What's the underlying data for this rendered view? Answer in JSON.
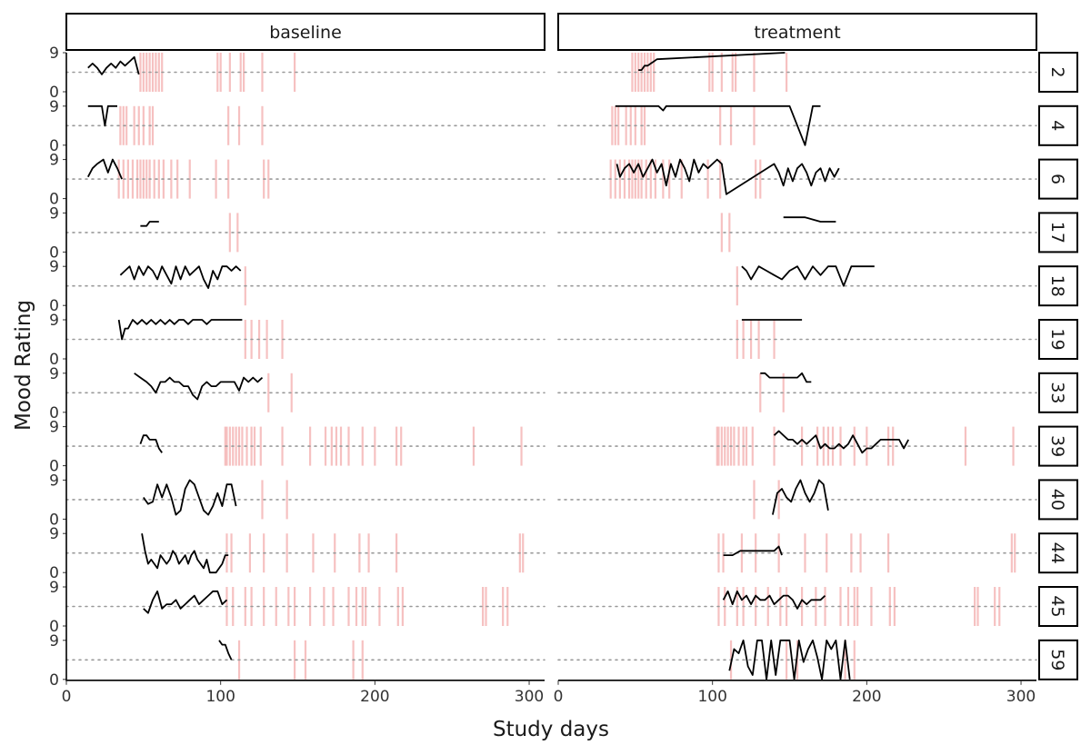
{
  "chart_data": {
    "type": "line",
    "xlabel": "Study days",
    "ylabel": "Mood Rating",
    "xlim": [
      0,
      310
    ],
    "ylim": [
      0,
      9
    ],
    "x_ticks": [
      0,
      100,
      200,
      300
    ],
    "y_ticks": [
      0,
      9
    ],
    "grid": false,
    "reference_line": {
      "y": 4.5,
      "style": "dotted"
    },
    "event_color": "#f4b6b6",
    "line_color": "#000000",
    "columns": [
      "baseline",
      "treatment"
    ],
    "panels": [
      {
        "id": "2",
        "baseline": {
          "x": [
            14,
            17,
            20,
            23,
            26,
            29,
            32,
            35,
            38,
            41,
            44,
            47
          ],
          "y": [
            5.5,
            6.5,
            5.5,
            4,
            5.5,
            6.5,
            5.5,
            7,
            6,
            7,
            8,
            4
          ]
        },
        "treatment": {
          "x": [
            52,
            54,
            56,
            58,
            60,
            62,
            64,
            147
          ],
          "y": [
            5,
            5,
            6,
            6,
            6.5,
            7,
            7.5,
            9
          ]
        },
        "events": [
          48,
          50,
          52,
          54,
          56,
          58,
          60,
          62,
          98,
          100,
          106,
          113,
          115,
          127,
          148
        ]
      },
      {
        "id": "4",
        "baseline": {
          "x": [
            14,
            17,
            20,
            23,
            25,
            27,
            29,
            31,
            33
          ],
          "y": [
            9,
            9,
            9,
            9,
            4.5,
            9,
            9,
            9,
            9
          ]
        },
        "treatment": {
          "x": [
            37,
            40,
            45,
            50,
            55,
            60,
            65,
            68,
            70,
            75,
            80,
            90,
            100,
            110,
            120,
            130,
            140,
            150,
            160,
            165,
            168,
            170
          ],
          "y": [
            9,
            9,
            9,
            9,
            9,
            9,
            9,
            8,
            9,
            9,
            9,
            9,
            9,
            9,
            9,
            9,
            9,
            9,
            0,
            9,
            9,
            9
          ]
        },
        "events": [
          35,
          37,
          39,
          44,
          47,
          50,
          54,
          56,
          105,
          112,
          127
        ]
      },
      {
        "id": "6",
        "baseline": {
          "x": [
            14,
            17,
            20,
            24,
            27,
            30,
            33,
            36
          ],
          "y": [
            5,
            7,
            8,
            9,
            6,
            9,
            7,
            4.5
          ]
        },
        "treatment": {
          "x": [
            38,
            40,
            43,
            46,
            49,
            52,
            55,
            58,
            61,
            64,
            67,
            70,
            73,
            76,
            79,
            82,
            85,
            88,
            91,
            94,
            97,
            100,
            103,
            106,
            109,
            140,
            143,
            146,
            149,
            152,
            155,
            158,
            161,
            164,
            167,
            170,
            173,
            176,
            179,
            182
          ],
          "y": [
            8,
            5,
            7,
            8,
            6,
            8,
            5,
            7,
            9,
            6,
            8,
            3,
            8,
            5,
            9,
            7,
            4,
            9,
            6,
            8,
            7,
            8,
            9,
            8,
            1,
            8,
            6,
            3,
            7,
            4,
            7,
            8,
            6,
            3,
            6,
            7,
            4,
            7,
            5,
            7
          ]
        },
        "events": [
          34,
          37,
          40,
          43,
          46,
          48,
          50,
          52,
          54,
          57,
          60,
          63,
          68,
          72,
          80,
          97,
          105,
          128,
          131
        ]
      },
      {
        "id": "17",
        "baseline": {
          "x": [
            48,
            50,
            52,
            54,
            56,
            58,
            60
          ],
          "y": [
            6,
            6,
            6,
            7,
            7,
            7,
            7
          ]
        },
        "treatment": {
          "x": [
            146,
            150,
            155,
            160,
            165,
            170,
            175,
            180
          ],
          "y": [
            8,
            8,
            8,
            8,
            7.5,
            7,
            7,
            7
          ]
        },
        "events": [
          106,
          111
        ]
      },
      {
        "id": "18",
        "baseline": {
          "x": [
            35,
            38,
            41,
            44,
            47,
            50,
            53,
            56,
            59,
            62,
            65,
            68,
            71,
            74,
            77,
            80,
            83,
            86,
            89,
            92,
            95,
            98,
            101,
            104,
            107,
            110,
            113
          ],
          "y": [
            7,
            8,
            9,
            6,
            9,
            7,
            9,
            8,
            6,
            9,
            7,
            5,
            9,
            6,
            9,
            7,
            8,
            9,
            6,
            4,
            8,
            6,
            9,
            9,
            8,
            9,
            8
          ]
        },
        "treatment": {
          "x": [
            119,
            122,
            125,
            130,
            135,
            140,
            145,
            150,
            155,
            160,
            165,
            170,
            175,
            180,
            185,
            190,
            195,
            200,
            205
          ],
          "y": [
            9,
            8,
            6,
            9,
            8,
            7,
            6,
            8,
            9,
            6,
            9,
            7,
            9,
            9,
            4.5,
            9,
            9,
            9,
            9
          ]
        },
        "events": [
          116
        ]
      },
      {
        "id": "19",
        "baseline": {
          "x": [
            34,
            36,
            38,
            40,
            43,
            46,
            49,
            52,
            55,
            58,
            61,
            64,
            67,
            70,
            73,
            76,
            79,
            82,
            85,
            88,
            91,
            94,
            97,
            100,
            103,
            106,
            110,
            114
          ],
          "y": [
            9,
            4.5,
            7,
            7,
            9,
            8,
            9,
            8,
            9,
            8,
            9,
            8,
            9,
            8,
            9,
            9,
            8,
            9,
            9,
            9,
            8,
            9,
            9,
            9,
            9,
            9,
            9,
            9
          ]
        },
        "treatment": {
          "x": [
            119,
            125,
            130,
            140,
            150,
            158
          ],
          "y": [
            9,
            9,
            9,
            9,
            9,
            9
          ]
        },
        "events": [
          116,
          120,
          125,
          130,
          140
        ]
      },
      {
        "id": "33",
        "baseline": {
          "x": [
            44,
            48,
            52,
            55,
            58,
            61,
            64,
            67,
            70,
            73,
            76,
            79,
            82,
            85,
            88,
            91,
            94,
            97,
            100,
            103,
            106,
            109,
            112,
            115,
            118,
            121,
            124,
            127
          ],
          "y": [
            9,
            8,
            7,
            6,
            4.5,
            7,
            7,
            8,
            7,
            7,
            6,
            6,
            4,
            3,
            6,
            7,
            6,
            6,
            7,
            7,
            7,
            7,
            5,
            8,
            7,
            8,
            7,
            8
          ]
        },
        "treatment": {
          "x": [
            131,
            134,
            137,
            140,
            143,
            146,
            149,
            152,
            155,
            158,
            161,
            164
          ],
          "y": [
            9,
            9,
            8,
            8,
            8,
            8,
            8,
            8,
            8,
            9,
            7,
            7
          ]
        },
        "events": [
          131,
          146
        ]
      },
      {
        "id": "39",
        "baseline": {
          "x": [
            48,
            50,
            52,
            54,
            56,
            58,
            60,
            62
          ],
          "y": [
            5,
            7,
            7,
            6,
            6,
            6,
            4,
            3
          ]
        },
        "treatment": {
          "x": [
            140,
            143,
            146,
            149,
            152,
            155,
            158,
            161,
            164,
            167,
            170,
            173,
            176,
            179,
            182,
            185,
            188,
            191,
            194,
            197,
            200,
            203,
            206,
            209,
            212,
            215,
            218,
            221,
            224,
            227
          ],
          "y": [
            7,
            8,
            7,
            6,
            6,
            5,
            6,
            5,
            6,
            7,
            4,
            5,
            4,
            4,
            5,
            4,
            5,
            7,
            5,
            3,
            4,
            4,
            5,
            6,
            6,
            6,
            6,
            6,
            4,
            6
          ]
        },
        "events": [
          103,
          104,
          106,
          108,
          110,
          112,
          114,
          117,
          120,
          122,
          126,
          140,
          158,
          168,
          172,
          175,
          178,
          183,
          192,
          200,
          214,
          217,
          264,
          295
        ]
      },
      {
        "id": "40",
        "baseline": {
          "x": [
            50,
            53,
            56,
            59,
            62,
            65,
            68,
            71,
            74,
            77,
            80,
            83,
            86,
            89,
            92,
            95,
            98,
            101,
            104,
            107,
            110
          ],
          "y": [
            5,
            3.5,
            4,
            8,
            5,
            8,
            5,
            1,
            2,
            7,
            9,
            8,
            5,
            2,
            1,
            3,
            6,
            3,
            8,
            8,
            3
          ]
        },
        "treatment": {
          "x": [
            139,
            142,
            145,
            148,
            151,
            154,
            157,
            160,
            163,
            166,
            169,
            172,
            175
          ],
          "y": [
            1,
            6,
            7,
            5,
            4,
            7,
            9,
            6,
            4,
            6,
            9,
            8,
            2
          ]
        },
        "events": [
          127,
          143
        ]
      },
      {
        "id": "44",
        "baseline": {
          "x": [
            49,
            51,
            53,
            55,
            57,
            59,
            61,
            63,
            65,
            67,
            69,
            71,
            73,
            75,
            77,
            79,
            81,
            83,
            85,
            87,
            89,
            91,
            93,
            95,
            97,
            99,
            101,
            103,
            105
          ],
          "y": [
            9,
            5,
            2,
            3,
            2,
            1,
            4,
            3,
            2,
            3,
            5,
            4,
            2,
            3,
            4,
            2,
            4,
            5,
            3,
            2,
            1,
            3,
            0,
            0,
            0,
            1,
            2,
            4,
            4
          ]
        },
        "treatment": {
          "x": [
            107,
            110,
            113,
            118,
            125,
            130,
            135,
            140,
            143,
            145
          ],
          "y": [
            4,
            4,
            4,
            5,
            5,
            5,
            5,
            5,
            6,
            4
          ]
        },
        "events": [
          104,
          107,
          119,
          128,
          143,
          160,
          174,
          190,
          196,
          214,
          294,
          296
        ]
      },
      {
        "id": "45",
        "baseline": {
          "x": [
            50,
            53,
            56,
            59,
            62,
            65,
            68,
            71,
            74,
            77,
            80,
            83,
            86,
            89,
            92,
            95,
            98,
            101,
            104
          ],
          "y": [
            4,
            3,
            6,
            8,
            4,
            5,
            5,
            6,
            4,
            5,
            6,
            7,
            5,
            6,
            7,
            8,
            8,
            5,
            6
          ]
        },
        "treatment": {
          "x": [
            107,
            110,
            113,
            116,
            119,
            122,
            125,
            128,
            131,
            134,
            137,
            140,
            143,
            146,
            149,
            152,
            155,
            158,
            161,
            164,
            167,
            170,
            173
          ],
          "y": [
            6,
            8,
            5,
            8,
            6,
            7,
            5,
            7,
            6,
            6,
            7,
            5,
            6,
            7,
            7,
            6,
            4,
            6,
            5,
            6,
            6,
            6,
            7
          ]
        },
        "events": [
          104,
          108,
          116,
          120,
          128,
          136,
          144,
          148,
          158,
          167,
          173,
          183,
          188,
          192,
          194,
          203,
          215,
          218,
          270,
          272,
          283,
          286
        ]
      },
      {
        "id": "59",
        "baseline": {
          "x": [
            99,
            101,
            103,
            105,
            107
          ],
          "y": [
            9,
            8,
            8,
            6,
            4.5
          ]
        },
        "treatment": {
          "x": [
            111,
            114,
            117,
            120,
            123,
            126,
            129,
            132,
            135,
            138,
            141,
            144,
            147,
            150,
            153,
            156,
            159,
            162,
            165,
            168,
            171,
            174,
            177,
            180,
            183,
            186,
            189
          ],
          "y": [
            2,
            7,
            6,
            9,
            3,
            1,
            9,
            9,
            0,
            9,
            1,
            9,
            9,
            9,
            0,
            9,
            4,
            7,
            9,
            5,
            0,
            9,
            7,
            9,
            0,
            9,
            0
          ]
        },
        "events": [
          112,
          148,
          155,
          186,
          192
        ]
      }
    ]
  }
}
